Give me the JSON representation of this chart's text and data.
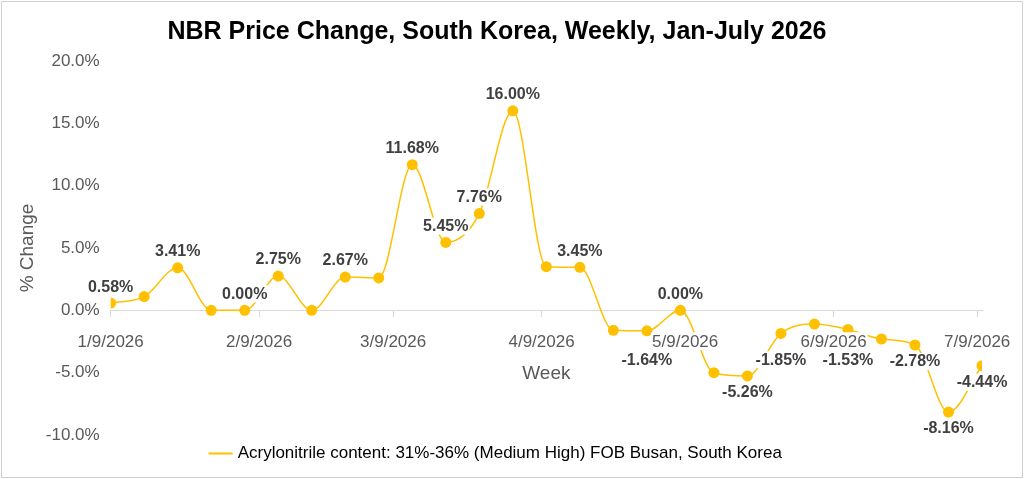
{
  "chart_data": {
    "type": "line",
    "title": "NBR Price Change, South Korea, Weekly, Jan-July 2026",
    "xlabel": "Week",
    "ylabel": "% Change",
    "x": [
      "2026-01-09",
      "2026-01-16",
      "2026-01-23",
      "2026-01-30",
      "2026-02-06",
      "2026-02-13",
      "2026-02-20",
      "2026-02-27",
      "2026-03-06",
      "2026-03-13",
      "2026-03-20",
      "2026-03-27",
      "2026-04-03",
      "2026-04-10",
      "2026-04-17",
      "2026-04-24",
      "2026-05-01",
      "2026-05-08",
      "2026-05-15",
      "2026-05-22",
      "2026-05-29",
      "2026-06-05",
      "2026-06-12",
      "2026-06-19",
      "2026-06-26",
      "2026-07-03",
      "2026-07-10"
    ],
    "series": [
      {
        "name": "Acrylonitrile content: 31%-36% (Medium High) FOB Busan, South Korea",
        "color": "#ffc000",
        "values": [
          0.58,
          1.1,
          3.41,
          0.0,
          0.0,
          2.75,
          0.0,
          2.67,
          2.6,
          11.68,
          5.45,
          7.76,
          16.0,
          3.5,
          3.45,
          -1.6,
          -1.64,
          0.0,
          -5.0,
          -5.26,
          -1.85,
          -1.1,
          -1.53,
          -2.3,
          -2.78,
          -8.16,
          -4.44
        ],
        "value_labels": [
          "0.58%",
          null,
          "3.41%",
          null,
          "0.00%",
          "2.75%",
          null,
          "2.67%",
          null,
          "11.68%",
          "5.45%",
          "7.76%",
          "16.00%",
          null,
          "3.45%",
          null,
          "-1.64%",
          "0.00%",
          null,
          "-5.26%",
          "-1.85%",
          null,
          "-1.53%",
          null,
          "-2.78%",
          "-8.16%",
          "-4.44%"
        ]
      }
    ],
    "xlim": [
      "2026-01-09",
      "2026-07-10"
    ],
    "xticks": [
      {
        "value": "2026-01-09",
        "label": "1/9/2026"
      },
      {
        "value": "2026-02-09",
        "label": "2/9/2026"
      },
      {
        "value": "2026-03-09",
        "label": "3/9/2026"
      },
      {
        "value": "2026-04-09",
        "label": "4/9/2026"
      },
      {
        "value": "2026-05-09",
        "label": "5/9/2026"
      },
      {
        "value": "2026-06-09",
        "label": "6/9/2026"
      },
      {
        "value": "2026-07-09",
        "label": "7/9/2026"
      }
    ],
    "ylim": [
      -10,
      20
    ],
    "yticks": [
      {
        "value": -10,
        "label": "-10.0%"
      },
      {
        "value": -5,
        "label": "-5.0%"
      },
      {
        "value": 0,
        "label": "0.0%"
      },
      {
        "value": 5,
        "label": "5.0%"
      },
      {
        "value": 10,
        "label": "10.0%"
      },
      {
        "value": 15,
        "label": "15.0%"
      },
      {
        "value": 20,
        "label": "20.0%"
      }
    ],
    "grid": false,
    "legend": "bottom",
    "marker": "circle",
    "line_style": "solid"
  }
}
